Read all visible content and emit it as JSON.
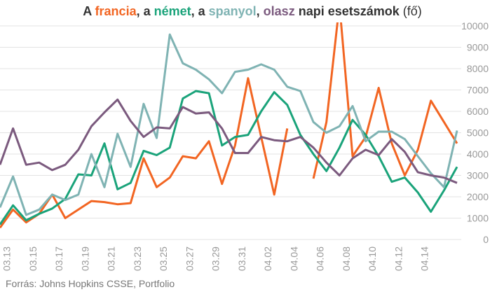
{
  "chart_data": {
    "type": "line",
    "title_segments": [
      "A ",
      ", a ",
      ", a ",
      ", ",
      " napi esetszámok",
      " (fő)"
    ],
    "source": "Forrás: Johns Hopkins CSSE, Portfolio",
    "categories": [
      null,
      "03.13",
      null,
      "03.15",
      null,
      "03.17",
      null,
      "03.19",
      null,
      "03.21",
      null,
      "03.23",
      null,
      "03.25",
      null,
      "03.27",
      null,
      "03.29",
      null,
      "03.31",
      null,
      "04.02",
      null,
      "04.04",
      null,
      "04.06",
      null,
      "04.08",
      null,
      "04.10",
      null,
      "04.12",
      null,
      "04.14",
      null,
      null
    ],
    "series": [
      {
        "name": "francia",
        "color": "#f26522",
        "values": [
          550,
          1400,
          800,
          1200,
          2100,
          1000,
          1400,
          1800,
          1750,
          1650,
          1700,
          3800,
          2450,
          2900,
          3900,
          3800,
          4600,
          2600,
          4400,
          7550,
          4800,
          2100,
          5200,
          null,
          2850,
          5500,
          11000,
          3900,
          4800,
          7100,
          4500,
          3000,
          4200,
          6500,
          5500,
          4500
        ]
      },
      {
        "name": "német",
        "color": "#1aa37a",
        "values": [
          700,
          1600,
          900,
          1200,
          1450,
          1900,
          3050,
          3000,
          4500,
          2350,
          2650,
          4150,
          3950,
          4300,
          6600,
          6950,
          6850,
          4400,
          4800,
          4900,
          6000,
          6900,
          6300,
          4900,
          4000,
          3200,
          4300,
          5600,
          4900,
          3900,
          2700,
          2900,
          2200,
          1300,
          2300,
          3400
        ]
      },
      {
        "name": "spanyol",
        "color": "#7fb3b3",
        "values": [
          1500,
          2950,
          1150,
          1400,
          2100,
          1850,
          2100,
          4000,
          2450,
          4950,
          3400,
          6350,
          4750,
          9600,
          8250,
          7950,
          7500,
          6850,
          7850,
          7950,
          8200,
          7950,
          7150,
          6950,
          5500,
          5000,
          5300,
          6250,
          4600,
          5050,
          5050,
          4700,
          3900,
          3100,
          2450,
          5100
        ]
      },
      {
        "name": "olasz",
        "color": "#7b5a7e",
        "values": [
          3500,
          5200,
          3500,
          3600,
          3250,
          3500,
          4200,
          5300,
          5950,
          6550,
          5550,
          4800,
          5250,
          5200,
          6200,
          5900,
          5950,
          5200,
          4050,
          4050,
          4800,
          4650,
          4600,
          4800,
          4300,
          3600,
          3000,
          3800,
          4200,
          3950,
          4700,
          4100,
          3150,
          3000,
          2900,
          2650
        ]
      }
    ],
    "ylim": [
      0,
      10000
    ],
    "yticks": [
      0,
      1000,
      2000,
      3000,
      4000,
      5000,
      6000,
      7000,
      8000,
      9000,
      10000
    ],
    "grid": true
  }
}
